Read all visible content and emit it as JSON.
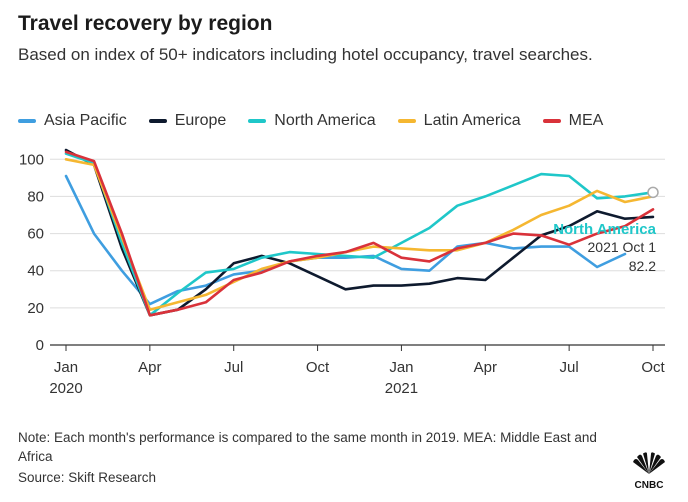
{
  "header": {
    "title": "Travel recovery by region",
    "subtitle": "Based on index of 50+ indicators including hotel occupancy, travel searches."
  },
  "footer": {
    "note": "Note: Each month's performance is compared to the same month in 2019. MEA: Middle East and Africa",
    "source": "Source: Skift Research",
    "logo_text": "CNBC"
  },
  "annotation": {
    "series": "North America",
    "date": "2021 Oct 1",
    "value": "82.2"
  },
  "colors": {
    "asia_pacific": "#3f9ee0",
    "europe": "#0e1a2e",
    "north_america": "#1fc7c9",
    "latin_america": "#f5b731",
    "mea": "#d9323a"
  },
  "chart_data": {
    "type": "line",
    "title": "Travel recovery by region",
    "subtitle": "Based on index of 50+ indicators including hotel occupancy, travel searches.",
    "x_unit": "month",
    "x": [
      "2020-01",
      "2020-02",
      "2020-03",
      "2020-04",
      "2020-05",
      "2020-06",
      "2020-07",
      "2020-08",
      "2020-09",
      "2020-10",
      "2020-11",
      "2020-12",
      "2021-01",
      "2021-02",
      "2021-03",
      "2021-04",
      "2021-05",
      "2021-06",
      "2021-07",
      "2021-08",
      "2021-09",
      "2021-10"
    ],
    "x_ticks": [
      {
        "x": "2020-01",
        "label": "Jan",
        "year": "2020"
      },
      {
        "x": "2020-04",
        "label": "Apr",
        "year": ""
      },
      {
        "x": "2020-07",
        "label": "Jul",
        "year": ""
      },
      {
        "x": "2020-10",
        "label": "Oct",
        "year": ""
      },
      {
        "x": "2021-01",
        "label": "Jan",
        "year": "2021"
      },
      {
        "x": "2021-04",
        "label": "Apr",
        "year": ""
      },
      {
        "x": "2021-07",
        "label": "Jul",
        "year": ""
      },
      {
        "x": "2021-10",
        "label": "Oct",
        "year": ""
      }
    ],
    "ylim": [
      0,
      105
    ],
    "y_ticks": [
      0,
      20,
      40,
      60,
      80,
      100
    ],
    "grid": "horizontal",
    "legend": "top",
    "series": [
      {
        "name": "Asia Pacific",
        "color": "#3f9ee0",
        "values": [
          91,
          60,
          40,
          22,
          29,
          32,
          38,
          40,
          45,
          47,
          47,
          48,
          41,
          40,
          53,
          55,
          52,
          53,
          53,
          42,
          49,
          null
        ]
      },
      {
        "name": "Europe",
        "color": "#0e1a2e",
        "values": [
          105,
          97,
          52,
          16,
          19,
          30,
          44,
          48,
          44,
          37,
          30,
          32,
          32,
          33,
          36,
          35,
          47,
          59,
          64,
          72,
          68,
          69
        ]
      },
      {
        "name": "North America",
        "color": "#1fc7c9",
        "values": [
          103,
          98,
          55,
          16,
          28,
          39,
          41,
          47,
          50,
          49,
          48,
          47,
          55,
          63,
          75,
          80,
          86,
          92,
          91,
          79,
          80,
          82.2
        ]
      },
      {
        "name": "Latin America",
        "color": "#f5b731",
        "values": [
          100,
          97,
          58,
          19,
          23,
          27,
          34,
          41,
          45,
          47,
          50,
          53,
          52,
          51,
          51,
          55,
          62,
          70,
          75,
          83,
          77,
          80
        ]
      },
      {
        "name": "MEA",
        "color": "#d9323a",
        "values": [
          104,
          99,
          60,
          16,
          19,
          23,
          35,
          39,
          45,
          48,
          50,
          55,
          47,
          45,
          52,
          55,
          60,
          59,
          54,
          60,
          64,
          73
        ]
      }
    ]
  }
}
